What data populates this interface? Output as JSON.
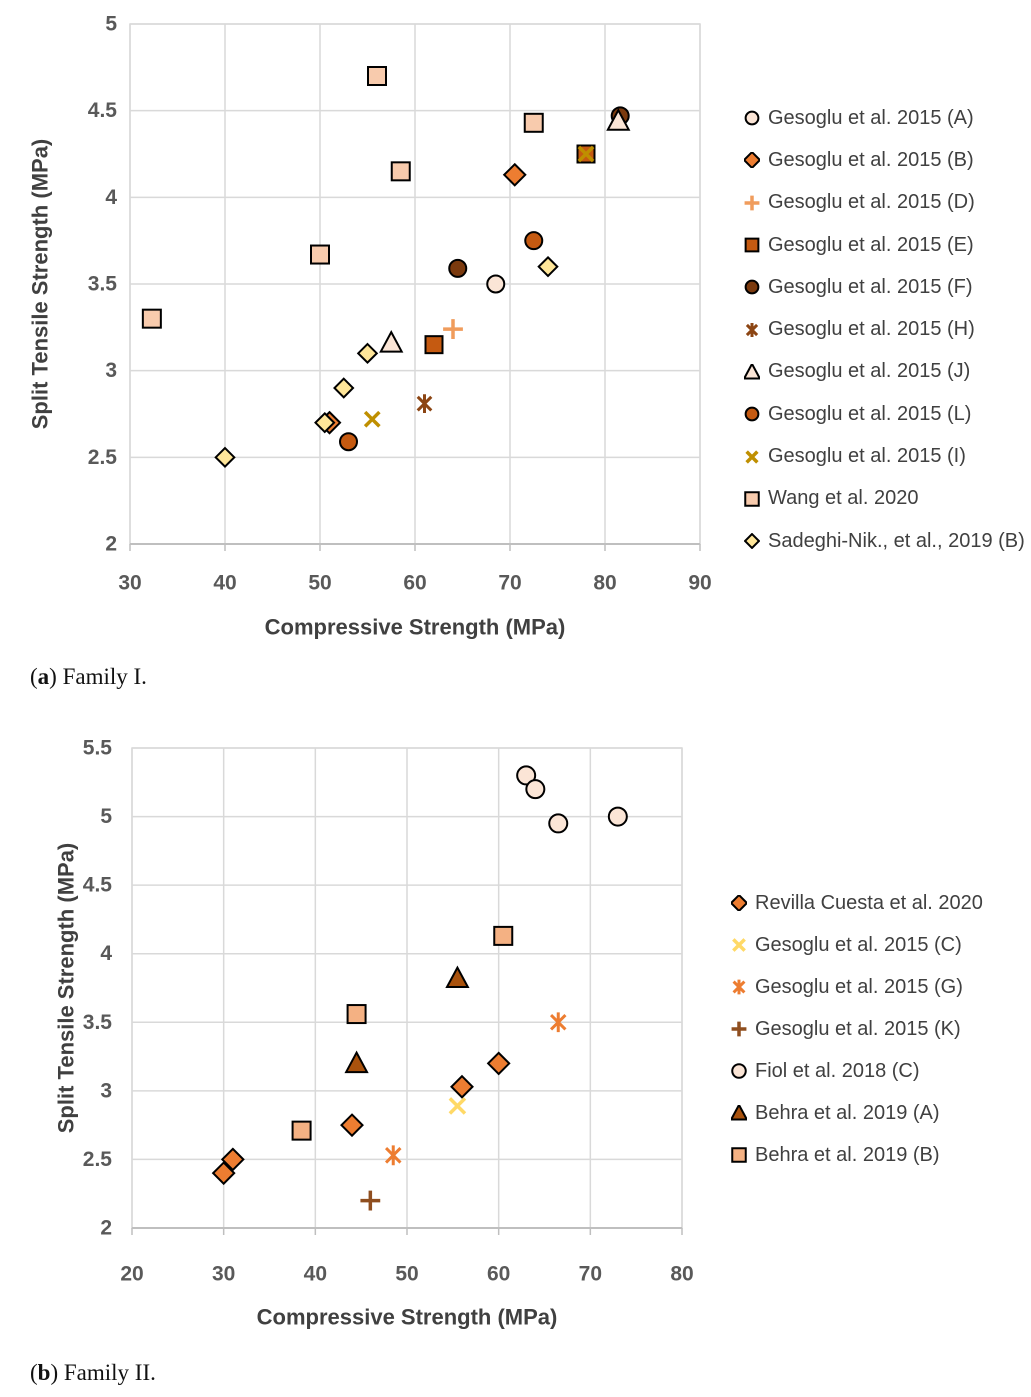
{
  "figure": {
    "captions": [
      {
        "open": "(",
        "bold": "a",
        "rest": ") Family I."
      },
      {
        "open": "(",
        "bold": "b",
        "rest": ") Family II."
      }
    ]
  },
  "colors": {
    "gridline": "#d9d9d9",
    "axis_line": "#bfbfbf",
    "tick_text": "#595959",
    "axis_title_text": "#404040",
    "marker_outline": "#000000"
  },
  "chart_data": [
    {
      "id": "family1",
      "type": "scatter",
      "title": "",
      "xlabel": "Compressive Strength (MPa)",
      "ylabel": "Split Tensile Strength (MPa)",
      "xlim": [
        30,
        90
      ],
      "ylim": [
        2,
        5
      ],
      "xticks": [
        30,
        40,
        50,
        60,
        70,
        80,
        90
      ],
      "yticks": [
        2,
        2.5,
        3,
        3.5,
        4,
        4.5,
        5
      ],
      "grid": true,
      "legend_position": "right",
      "series": [
        {
          "name": "Gesoglu et al. 2015 (A)",
          "marker": "circle",
          "color": "#FBE5D6",
          "size": 17,
          "points": [
            [
              68.5,
              3.5
            ]
          ]
        },
        {
          "name": "Gesoglu et al. 2015 (B)",
          "marker": "diamond",
          "color": "#ED7D31",
          "size": 17,
          "points": [
            [
              51,
              2.7
            ],
            [
              70.5,
              4.13
            ]
          ]
        },
        {
          "name": "Gesoglu et al. 2015 (D)",
          "marker": "plus",
          "color": "#F09C5C",
          "size": 18,
          "points": [
            [
              64,
              3.24
            ]
          ]
        },
        {
          "name": "Gesoglu et al. 2015 (E)",
          "marker": "square",
          "color": "#C55A11",
          "size": 17,
          "points": [
            [
              62,
              3.15
            ],
            [
              78,
              4.25
            ]
          ]
        },
        {
          "name": "Gesoglu et al. 2015 (F)",
          "marker": "circle",
          "color": "#7B3A0E",
          "size": 17,
          "points": [
            [
              64.5,
              3.59
            ],
            [
              81.6,
              4.47
            ]
          ]
        },
        {
          "name": "Gesoglu et al. 2015 (H)",
          "marker": "asterisk",
          "color": "#8C4513",
          "size": 17,
          "points": [
            [
              61,
              2.81
            ]
          ]
        },
        {
          "name": "Gesoglu et al. 2015 (J)",
          "marker": "triangle",
          "color": "#FBE5D6",
          "size": 18,
          "points": [
            [
              57.5,
              3.16
            ],
            [
              81.4,
              4.44
            ]
          ]
        },
        {
          "name": "Gesoglu et al. 2015 (L)",
          "marker": "circle",
          "color": "#C55A11",
          "size": 17,
          "points": [
            [
              53,
              2.59
            ],
            [
              72.5,
              3.75
            ]
          ]
        },
        {
          "name": "Gesoglu et al. 2015 (I)",
          "marker": "x",
          "color": "#BF8F00",
          "size": 17,
          "points": [
            [
              55.5,
              2.72
            ],
            [
              78,
              4.25
            ]
          ]
        },
        {
          "name": "Wang et al. 2020",
          "marker": "square",
          "color": "#F8CBAD",
          "size": 18,
          "points": [
            [
              32.3,
              3.3
            ],
            [
              50,
              3.67
            ],
            [
              56,
              4.7
            ],
            [
              58.5,
              4.15
            ],
            [
              72.5,
              4.43
            ]
          ]
        },
        {
          "name": "Sadeghi-Nik., et al., 2019 (B)",
          "marker": "diamond",
          "color": "#FFE699",
          "size": 15,
          "points": [
            [
              40,
              2.5
            ],
            [
              50.5,
              2.7
            ],
            [
              52.5,
              2.9
            ],
            [
              55,
              3.1
            ],
            [
              74,
              3.6
            ]
          ]
        }
      ]
    },
    {
      "id": "family2",
      "type": "scatter",
      "title": "",
      "xlabel": "Compressive Strength (MPa)",
      "ylabel": "Split Tensile Strength (MPa)",
      "xlim": [
        20,
        80
      ],
      "ylim": [
        2,
        5.5
      ],
      "xticks": [
        20,
        30,
        40,
        50,
        60,
        70,
        80
      ],
      "yticks": [
        2,
        2.5,
        3,
        3.5,
        4,
        4.5,
        5,
        5.5
      ],
      "grid": true,
      "legend_position": "right",
      "series": [
        {
          "name": "Revilla Cuesta et al. 2020",
          "marker": "diamond",
          "color": "#ED7D31",
          "size": 17,
          "points": [
            [
              30,
              2.4
            ],
            [
              31,
              2.5
            ],
            [
              44,
              2.75
            ],
            [
              56,
              3.03
            ],
            [
              60,
              3.2
            ]
          ]
        },
        {
          "name": "Gesoglu et al. 2015 (C)",
          "marker": "x",
          "color": "#FFD966",
          "size": 18,
          "points": [
            [
              55.5,
              2.89
            ]
          ]
        },
        {
          "name": "Gesoglu et al. 2015 (G)",
          "marker": "asterisk",
          "color": "#ED7D31",
          "size": 18,
          "points": [
            [
              48.5,
              2.53
            ],
            [
              66.5,
              3.5
            ]
          ]
        },
        {
          "name": "Gesoglu et al. 2015 (K)",
          "marker": "plus",
          "color": "#8F4E1F",
          "size": 18,
          "points": [
            [
              46,
              2.2
            ]
          ]
        },
        {
          "name": "Fiol et al. 2018 (C)",
          "marker": "circle",
          "color": "#FBE5D6",
          "size": 18,
          "points": [
            [
              63,
              5.3
            ],
            [
              64,
              5.2
            ],
            [
              66.5,
              4.95
            ],
            [
              73,
              5.0
            ]
          ]
        },
        {
          "name": "Behra et al. 2019 (A)",
          "marker": "triangle",
          "color": "#A9520D",
          "size": 18,
          "points": [
            [
              44.5,
              3.2
            ],
            [
              55.5,
              3.82
            ]
          ]
        },
        {
          "name": "Behra et al. 2019 (B)",
          "marker": "square",
          "color": "#F4B183",
          "size": 18,
          "points": [
            [
              38.5,
              2.71
            ],
            [
              44.5,
              3.56
            ],
            [
              60.5,
              4.13
            ]
          ]
        }
      ]
    }
  ]
}
